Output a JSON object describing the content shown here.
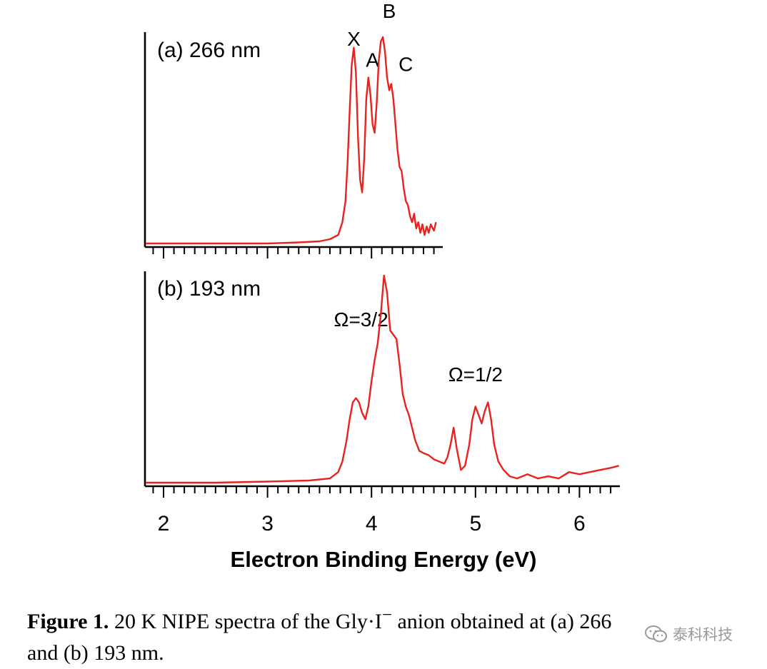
{
  "chart_data": [
    {
      "type": "line",
      "panel_label": "(a) 266 nm",
      "title": "",
      "xlabel": "",
      "ylabel": "",
      "xlim": [
        1.83,
        4.68
      ],
      "grid": false,
      "color": "#e8231f",
      "annotations": [
        {
          "text": "X",
          "x": 3.83,
          "y": 0.93
        },
        {
          "text": "A",
          "x": 4.01,
          "y": 0.83
        },
        {
          "text": "B",
          "x": 4.17,
          "y": 1.06
        },
        {
          "text": "C",
          "x": 4.33,
          "y": 0.81
        }
      ],
      "series": [
        {
          "x": [
            1.83,
            2.0,
            2.5,
            3.0,
            3.3,
            3.5,
            3.6,
            3.68,
            3.72,
            3.75,
            3.77,
            3.79,
            3.81,
            3.83,
            3.85,
            3.87,
            3.89,
            3.91,
            3.93,
            3.95,
            3.97,
            3.99,
            4.01,
            4.03,
            4.05,
            4.07,
            4.09,
            4.11,
            4.13,
            4.15,
            4.17,
            4.19,
            4.21,
            4.23,
            4.25,
            4.27,
            4.29,
            4.31,
            4.33,
            4.35,
            4.37,
            4.39,
            4.41,
            4.43,
            4.45,
            4.47,
            4.49,
            4.51,
            4.53,
            4.55,
            4.57,
            4.6,
            4.62
          ],
          "y": [
            0.0,
            0.0,
            0.0,
            0.0,
            0.005,
            0.01,
            0.02,
            0.04,
            0.1,
            0.2,
            0.38,
            0.62,
            0.84,
            0.92,
            0.8,
            0.5,
            0.3,
            0.24,
            0.4,
            0.68,
            0.78,
            0.7,
            0.56,
            0.52,
            0.66,
            0.86,
            0.95,
            0.97,
            0.9,
            0.78,
            0.72,
            0.75,
            0.68,
            0.56,
            0.44,
            0.36,
            0.34,
            0.26,
            0.2,
            0.18,
            0.13,
            0.1,
            0.14,
            0.07,
            0.1,
            0.05,
            0.09,
            0.04,
            0.08,
            0.05,
            0.09,
            0.06,
            0.1
          ]
        }
      ]
    },
    {
      "type": "line",
      "panel_label": "(b) 193 nm",
      "title": "",
      "xlabel": "Electron Binding Energy (eV)",
      "ylabel": "",
      "xlim": [
        1.83,
        6.38
      ],
      "xticks": [
        2,
        3,
        4,
        5,
        6
      ],
      "grid": false,
      "color": "#e8231f",
      "annotations": [
        {
          "text": "Ω=3/2",
          "x": 3.9,
          "y": 0.74
        },
        {
          "text": "Ω=1/2",
          "x": 5.0,
          "y": 0.48
        }
      ],
      "series": [
        {
          "x": [
            1.83,
            2.0,
            2.5,
            3.0,
            3.4,
            3.6,
            3.68,
            3.72,
            3.76,
            3.79,
            3.82,
            3.85,
            3.88,
            3.91,
            3.94,
            3.97,
            4.0,
            4.03,
            4.06,
            4.09,
            4.12,
            4.15,
            4.18,
            4.21,
            4.24,
            4.27,
            4.3,
            4.33,
            4.36,
            4.39,
            4.42,
            4.46,
            4.5,
            4.55,
            4.6,
            4.65,
            4.7,
            4.73,
            4.76,
            4.79,
            4.82,
            4.86,
            4.9,
            4.94,
            4.97,
            5.0,
            5.03,
            5.06,
            5.09,
            5.12,
            5.15,
            5.18,
            5.22,
            5.27,
            5.33,
            5.4,
            5.5,
            5.6,
            5.7,
            5.8,
            5.9,
            6.0,
            6.1,
            6.2,
            6.3,
            6.38
          ],
          "y": [
            0.0,
            0.0,
            0.0,
            0.005,
            0.01,
            0.02,
            0.05,
            0.1,
            0.2,
            0.3,
            0.38,
            0.4,
            0.38,
            0.33,
            0.3,
            0.36,
            0.48,
            0.58,
            0.66,
            0.8,
            0.98,
            0.9,
            0.72,
            0.7,
            0.68,
            0.56,
            0.42,
            0.36,
            0.32,
            0.26,
            0.2,
            0.15,
            0.14,
            0.13,
            0.11,
            0.1,
            0.09,
            0.12,
            0.18,
            0.26,
            0.16,
            0.06,
            0.08,
            0.18,
            0.3,
            0.36,
            0.32,
            0.28,
            0.34,
            0.38,
            0.3,
            0.18,
            0.1,
            0.06,
            0.03,
            0.02,
            0.04,
            0.02,
            0.03,
            0.02,
            0.05,
            0.04,
            0.05,
            0.06,
            0.07,
            0.08
          ]
        }
      ]
    }
  ],
  "caption": {
    "label": "Figure 1.",
    "text_line1": "20 K NIPE spectra of the Gly·I",
    "superscript": "−",
    "text_line1_end": " anion obtained at (a) 266",
    "text_line2": "and (b) 193 nm."
  },
  "watermark": {
    "text": "泰科科技",
    "icon": "wechat-icon"
  }
}
